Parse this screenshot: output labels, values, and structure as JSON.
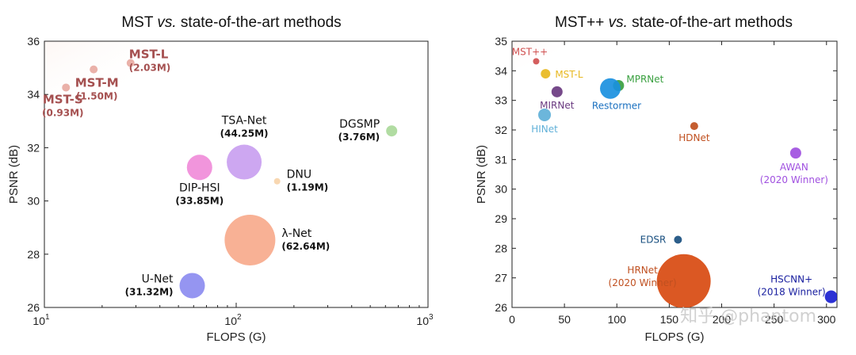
{
  "chart_data": [
    {
      "type": "scatter",
      "title_pre": "MST ",
      "title_em": "vs.",
      "title_post": " state-of-the-art methods",
      "xlabel": "FLOPS (G)",
      "ylabel": "PSNR (dB)",
      "xscale": "log",
      "xlim": [
        10,
        1000
      ],
      "ylim": [
        26,
        36
      ],
      "x_ticks": [
        {
          "value": 10,
          "base": "10",
          "exp": "1"
        },
        {
          "value": 100,
          "base": "10",
          "exp": "2"
        },
        {
          "value": 1000,
          "base": "10",
          "exp": "3"
        }
      ],
      "y_ticks": [
        "26",
        "28",
        "30",
        "32",
        "34",
        "36"
      ],
      "grid": false,
      "points": [
        {
          "name": "MST-S",
          "params": "(0.93M)",
          "x": 12.96,
          "y": 34.26,
          "color": "#e8a8a0",
          "label_color": "#a55050",
          "label_pos": "below",
          "bold": true
        },
        {
          "name": "MST-M",
          "params": "(1.50M)",
          "x": 18.07,
          "y": 34.94,
          "color": "#e8a8a0",
          "label_color": "#a55050",
          "label_pos": "below",
          "bold": true
        },
        {
          "name": "MST-L",
          "params": "(2.03M)",
          "x": 28.15,
          "y": 35.18,
          "color": "#e8a8a0",
          "label_color": "#a55050",
          "label_pos": "right",
          "bold": true
        },
        {
          "name": "TSA-Net",
          "params": "(44.25M)",
          "x": 110.06,
          "y": 31.46,
          "color": "#c89df0",
          "label_color": "#111111",
          "label_pos": "above",
          "bold": false
        },
        {
          "name": "DGSMP",
          "params": "(3.76M)",
          "x": 646.65,
          "y": 32.63,
          "color": "#a8d898",
          "label_color": "#111111",
          "label_pos": "left",
          "bold": false
        },
        {
          "name": "DIP-HSI",
          "params": "(33.85M)",
          "x": 64.42,
          "y": 31.26,
          "color": "#f08ad8",
          "label_color": "#111111",
          "label_pos": "below",
          "bold": false
        },
        {
          "name": "DNU",
          "params": "(1.19M)",
          "x": 163.48,
          "y": 30.74,
          "color": "#f7d3a8",
          "label_color": "#111111",
          "label_pos": "right",
          "bold": false
        },
        {
          "name": "λ-Net",
          "params": "(62.64M)",
          "x": 117.98,
          "y": 28.53,
          "color": "#f7a88a",
          "label_color": "#111111",
          "label_pos": "right",
          "bold": false
        },
        {
          "name": "U-Net",
          "params": "(31.32M)",
          "x": 58.99,
          "y": 26.82,
          "color": "#8a8af0",
          "label_color": "#111111",
          "label_pos": "left",
          "bold": false
        }
      ]
    },
    {
      "type": "scatter",
      "title_pre": "MST++ ",
      "title_em": "vs.",
      "title_post": " state-of-the-art methods",
      "xlabel": "FLOPS (G)",
      "ylabel": "PSNR (dB)",
      "xscale": "linear",
      "xlim": [
        0,
        310
      ],
      "ylim": [
        26,
        35
      ],
      "x_ticks": [
        "0",
        "50",
        "100",
        "150",
        "200",
        "250",
        "300"
      ],
      "y_ticks": [
        "26",
        "27",
        "28",
        "29",
        "30",
        "31",
        "32",
        "33",
        "34",
        "35"
      ],
      "grid": false,
      "points": [
        {
          "name": "MST++",
          "sub": "",
          "x": 23.05,
          "y": 34.32,
          "color": "#d05050",
          "label_color": "#d05050",
          "label_pos": "above-left"
        },
        {
          "name": "MST-L",
          "sub": "",
          "x": 32,
          "y": 33.9,
          "color": "#e8b820",
          "label_color": "#e8b820",
          "label_pos": "right"
        },
        {
          "name": "MIRNet",
          "sub": "",
          "x": 42.95,
          "y": 33.29,
          "color": "#6a3a80",
          "label_color": "#6a3a80",
          "label_pos": "below"
        },
        {
          "name": "MPRNet",
          "sub": "",
          "x": 101.59,
          "y": 33.5,
          "color": "#3aa040",
          "label_color": "#3aa040",
          "label_pos": "right"
        },
        {
          "name": "Restormer",
          "sub": "",
          "x": 93.77,
          "y": 33.4,
          "color": "#1a90e0",
          "label_color": "#1a70c0",
          "label_pos": "below"
        },
        {
          "name": "HINet",
          "sub": "",
          "x": 31.04,
          "y": 32.51,
          "color": "#60b0d8",
          "label_color": "#60b0d8",
          "label_pos": "below"
        },
        {
          "name": "HDNet",
          "sub": "",
          "x": 173.81,
          "y": 32.13,
          "color": "#c05020",
          "label_color": "#c05020",
          "label_pos": "below"
        },
        {
          "name": "AWAN",
          "sub": "(2020 Winner)",
          "x": 270.61,
          "y": 31.22,
          "color": "#a050e0",
          "label_color": "#a050e0",
          "label_pos": "below"
        },
        {
          "name": "EDSR",
          "sub": "",
          "x": 158.32,
          "y": 28.29,
          "color": "#1a5080",
          "label_color": "#1a5080",
          "label_pos": "left"
        },
        {
          "name": "HRNet",
          "sub": "(2020 Winner)",
          "x": 163.81,
          "y": 26.89,
          "color": "#d84a10",
          "label_color": "#c05020",
          "label_pos": "left"
        },
        {
          "name": "HSCNN+",
          "sub": "(2018 Winner)",
          "x": 304.45,
          "y": 26.36,
          "color": "#1a20d0",
          "label_color": "#1a20a0",
          "label_pos": "left"
        }
      ]
    }
  ],
  "watermark": "知乎 @phantom"
}
